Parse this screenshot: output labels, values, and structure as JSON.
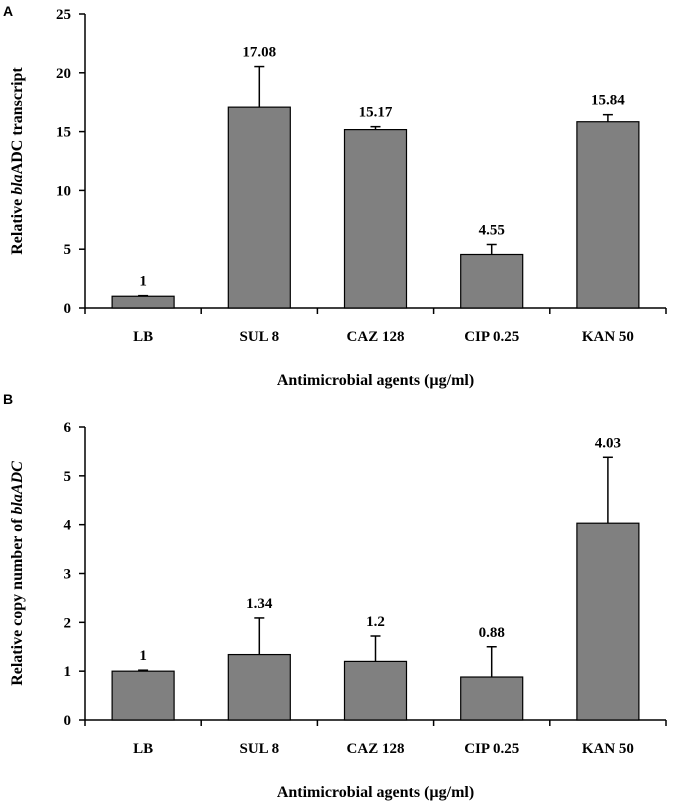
{
  "chart_data": [
    {
      "panel": "A",
      "type": "bar",
      "categories": [
        "LB",
        "SUL 8",
        "CAZ 128",
        "CIP 0.25",
        "KAN 50"
      ],
      "values": [
        1,
        17.08,
        15.17,
        4.55,
        15.84
      ],
      "value_labels": [
        "1",
        "17.08",
        "15.17",
        "4.55",
        "15.84"
      ],
      "error_plus": [
        0.05,
        3.45,
        0.25,
        0.85,
        0.6
      ],
      "ylim": [
        0,
        25
      ],
      "yticks": [
        0,
        5,
        10,
        15,
        20,
        25
      ],
      "ylabel_prefix": "Relative ",
      "ylabel_italic": "bla",
      "ylabel_suffix": "ADC transcript",
      "xlabel": "Antimicrobial agents (µg/ml)",
      "bar_color": "#808080",
      "grid": false
    },
    {
      "panel": "B",
      "type": "bar",
      "categories": [
        "LB",
        "SUL 8",
        "CAZ 128",
        "CIP 0.25",
        "KAN 50"
      ],
      "values": [
        1,
        1.34,
        1.2,
        0.88,
        4.03
      ],
      "value_labels": [
        "1",
        "1.34",
        "1.2",
        "0.88",
        "4.03"
      ],
      "error_plus": [
        0.02,
        0.75,
        0.52,
        0.62,
        1.35
      ],
      "ylim": [
        0,
        6
      ],
      "yticks": [
        0,
        1,
        2,
        3,
        4,
        5,
        6
      ],
      "ylabel_prefix": "Relative  copy number of ",
      "ylabel_italic": "blaADC",
      "ylabel_suffix": "",
      "xlabel": "Antimicrobial agents  (µg/ml)",
      "bar_color": "#808080",
      "grid": false
    }
  ]
}
